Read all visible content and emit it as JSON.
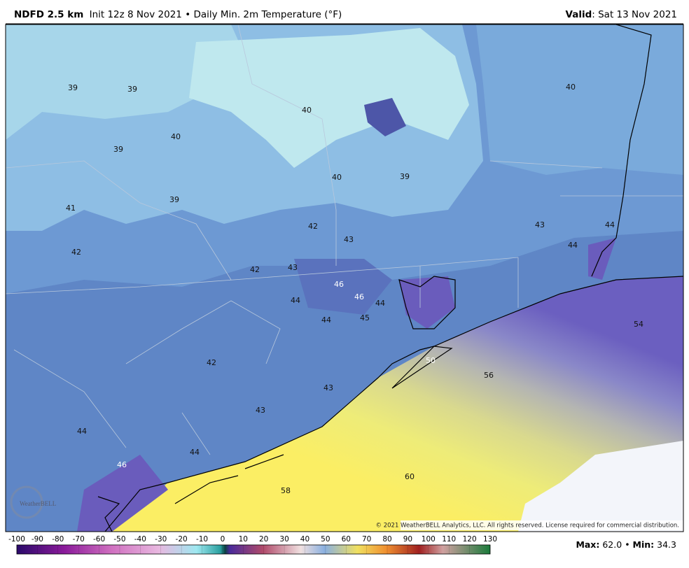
{
  "header": {
    "model": "NDFD 2.5 km",
    "description": "Init 12z 8 Nov 2021 • Daily Min. 2m Temperature (°F)",
    "valid_label": "Valid",
    "valid_date": ": Sat 13 Nov 2021"
  },
  "map_labels": [
    39,
    39,
    40,
    40,
    40,
    39,
    40,
    39,
    39,
    41,
    42,
    43,
    44,
    43,
    44,
    42,
    42,
    43,
    46,
    46,
    44,
    44,
    44,
    45,
    54,
    50,
    56,
    42,
    43,
    43,
    44,
    44,
    46,
    60,
    58
  ],
  "logo": "WeatherBELL",
  "copyright": "© 2021 WeatherBELL Analytics, LLC. All rights reserved. License required for commercial distribution.",
  "colorbar": {
    "ticks": [
      -100,
      -90,
      -80,
      -70,
      -60,
      -50,
      -40,
      -30,
      -20,
      -10,
      0,
      10,
      20,
      30,
      40,
      50,
      60,
      70,
      80,
      90,
      100,
      110,
      120,
      130
    ]
  },
  "stats": {
    "max_label": "Max",
    "max": "62.0",
    "separator": "•",
    "min_label": "Min",
    "min": "34.3"
  }
}
